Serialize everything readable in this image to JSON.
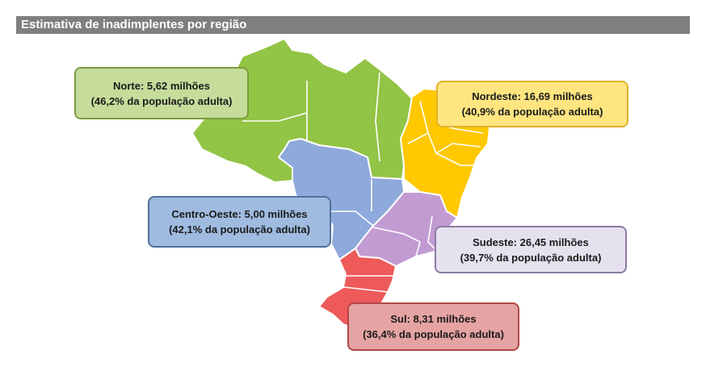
{
  "title": "Estimativa de inadimplentes por região",
  "colors": {
    "title_bar": "#7f7f7f",
    "norte": "#92c445",
    "nordeste": "#ffc800",
    "centro_oeste": "#8ea9db",
    "sudeste": "#c39bd3",
    "sul": "#ee5a5a"
  },
  "regions": [
    {
      "key": "norte",
      "line1": "Norte: 5,62 milhões",
      "line2": "(46,2% da população adulta)",
      "value_millions": 5.62,
      "share_pct": 46.2
    },
    {
      "key": "nordeste",
      "line1": "Nordeste: 16,69 milhões",
      "line2": "(40,9% da população adulta)",
      "value_millions": 16.69,
      "share_pct": 40.9
    },
    {
      "key": "centro_oeste",
      "line1": "Centro-Oeste: 5,00 milhões",
      "line2": "(42,1% da população adulta)",
      "value_millions": 5.0,
      "share_pct": 42.1
    },
    {
      "key": "sudeste",
      "line1": "Sudeste: 26,45 milhões",
      "line2": "(39,7% da população adulta)",
      "value_millions": 26.45,
      "share_pct": 39.7
    },
    {
      "key": "sul",
      "line1": "Sul: 8,31 milhões",
      "line2": "(36,4% da população adulta)",
      "value_millions": 8.31,
      "share_pct": 36.4
    }
  ]
}
